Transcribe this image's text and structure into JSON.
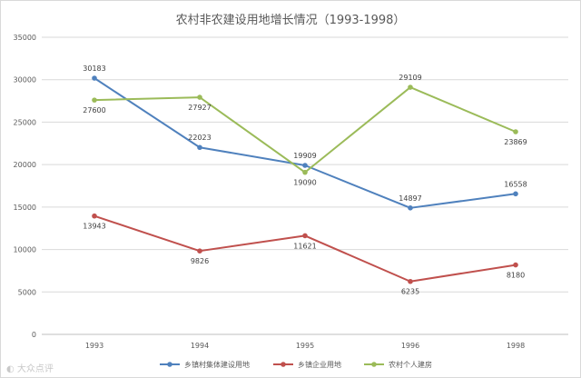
{
  "chart_data": {
    "type": "line",
    "title": "农村非农建设用地增长情况（1993-1998）",
    "categories": [
      "1993",
      "1994",
      "1995",
      "1996",
      "1998"
    ],
    "ylim": [
      0,
      35000
    ],
    "yticks": [
      "0",
      "5000",
      "10000",
      "15000",
      "20000",
      "25000",
      "30000",
      "35000"
    ],
    "grid": true,
    "legend_position": "bottom",
    "series": [
      {
        "name": "乡镇村集体建设用地",
        "color": "#4f81bd",
        "values": [
          30183,
          22023,
          19909,
          14897,
          16558
        ],
        "label_pos": [
          "above",
          "above",
          "above",
          "above",
          "above"
        ]
      },
      {
        "name": "乡镇企业用地",
        "color": "#c0504d",
        "values": [
          13943,
          9826,
          11621,
          6235,
          8180
        ],
        "label_pos": [
          "below",
          "below",
          "below",
          "below",
          "below"
        ]
      },
      {
        "name": "农村个人建房",
        "color": "#9bbb59",
        "values": [
          27600,
          27927,
          19090,
          29109,
          23869
        ],
        "label_pos": [
          "below",
          "below",
          "below",
          "above",
          "below"
        ]
      }
    ]
  },
  "watermark": "大众点评"
}
